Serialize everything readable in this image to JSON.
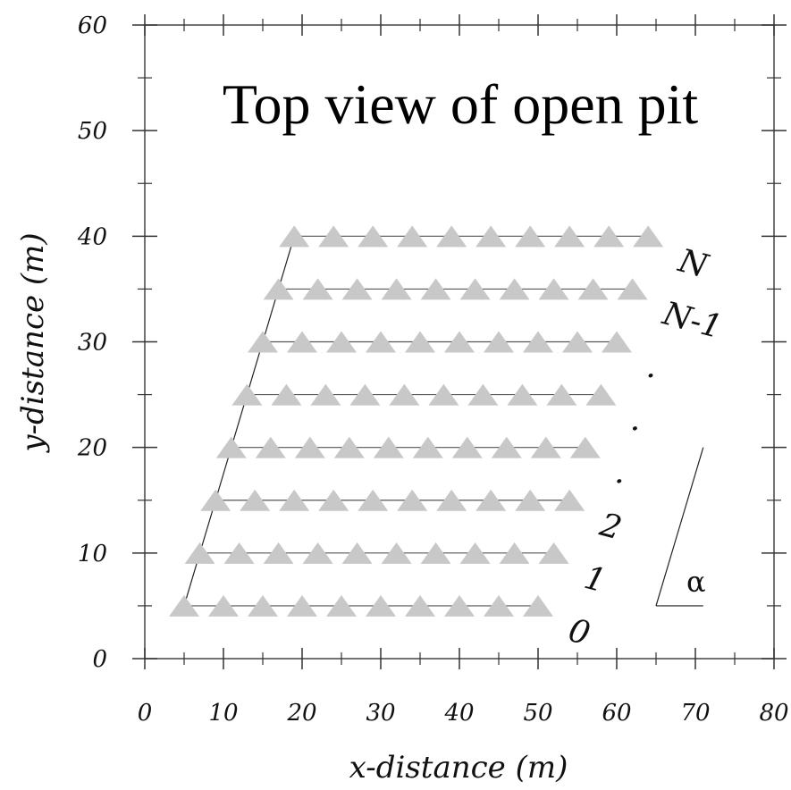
{
  "chart_data": {
    "type": "scatter",
    "title": "Top view of open pit",
    "xlabel": "x-distance (m)",
    "ylabel": "y-distance (m)",
    "xlim": [
      0,
      80
    ],
    "ylim": [
      0,
      60
    ],
    "x_ticks": [
      0,
      10,
      20,
      30,
      40,
      50,
      60,
      70,
      80
    ],
    "y_ticks": [
      0,
      10,
      20,
      30,
      40,
      50,
      60
    ],
    "grid": false,
    "marker_color": "#c8c8c8",
    "line_color": "#555555",
    "rows": [
      {
        "label": "0",
        "y": 5,
        "x": [
          5,
          10,
          15,
          20,
          25,
          30,
          35,
          40,
          45,
          50
        ]
      },
      {
        "label": "1",
        "y": 10,
        "x": [
          7,
          12,
          17,
          22,
          27,
          32,
          37,
          42,
          47,
          52
        ]
      },
      {
        "label": "2",
        "y": 15,
        "x": [
          9,
          14,
          19,
          24,
          29,
          34,
          39,
          44,
          49,
          54
        ]
      },
      {
        "label": ".",
        "y": 20,
        "x": [
          11,
          16,
          21,
          26,
          31,
          36,
          41,
          46,
          51,
          56
        ]
      },
      {
        "label": ".",
        "y": 25,
        "x": [
          13,
          18,
          23,
          28,
          33,
          38,
          43,
          48,
          53,
          58
        ]
      },
      {
        "label": ".",
        "y": 30,
        "x": [
          15,
          20,
          25,
          30,
          35,
          40,
          45,
          50,
          55,
          60
        ]
      },
      {
        "label": "N-1",
        "y": 35,
        "x": [
          17,
          22,
          27,
          32,
          37,
          42,
          47,
          52,
          57,
          62
        ]
      },
      {
        "label": "N",
        "y": 40,
        "x": [
          19,
          24,
          29,
          34,
          39,
          44,
          49,
          54,
          59,
          64
        ]
      }
    ],
    "slope_line": {
      "x": [
        5,
        19
      ],
      "y": [
        5,
        40
      ]
    },
    "angle_indicator": {
      "label": "α",
      "vertex": [
        65,
        5
      ],
      "horizontal_end": [
        71,
        5
      ],
      "slope_end": [
        71,
        20
      ]
    }
  }
}
